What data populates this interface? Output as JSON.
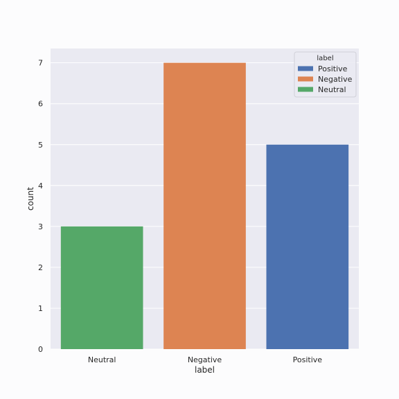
{
  "chart_data": {
    "type": "bar",
    "categories": [
      "Neutral",
      "Negative",
      "Positive"
    ],
    "values": [
      3,
      7,
      5
    ],
    "bar_colors": [
      "#55a868",
      "#dd8452",
      "#4c72b0"
    ],
    "xlabel": "label",
    "ylabel": "count",
    "ylim": [
      0,
      7.35
    ],
    "yticks": [
      0,
      1,
      2,
      3,
      4,
      5,
      6,
      7
    ],
    "grid": true,
    "plot_background": "#eaeaf2",
    "grid_color": "#ffffff",
    "legend": {
      "title": "label",
      "placement": "top-right",
      "entries": [
        {
          "name": "Positive",
          "color": "#4c72b0"
        },
        {
          "name": "Negative",
          "color": "#dd8452"
        },
        {
          "name": "Neutral",
          "color": "#55a868"
        }
      ]
    }
  }
}
